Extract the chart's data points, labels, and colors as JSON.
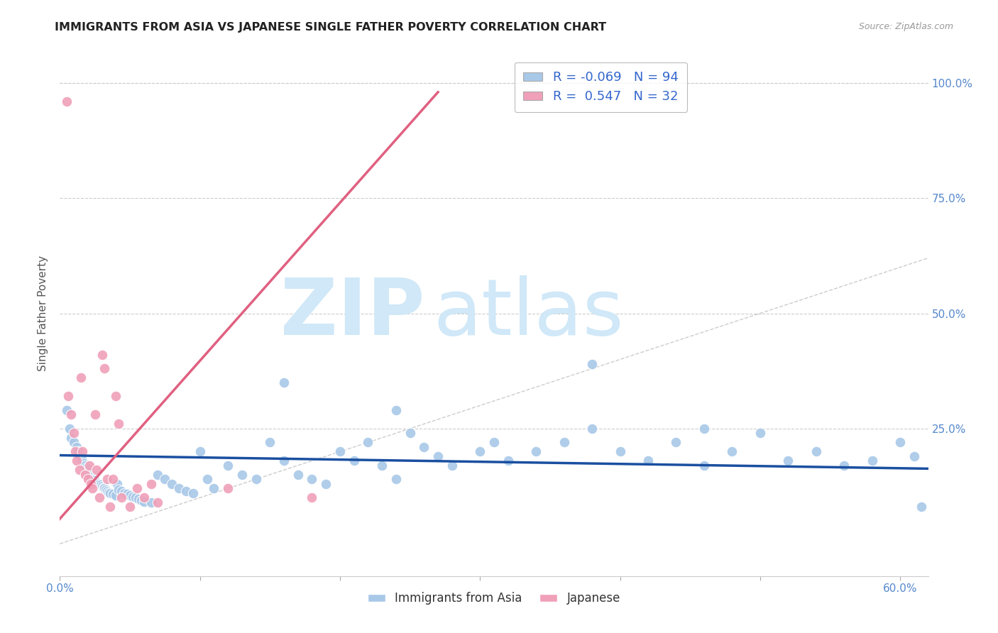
{
  "title": "IMMIGRANTS FROM ASIA VS JAPANESE SINGLE FATHER POVERTY CORRELATION CHART",
  "source": "Source: ZipAtlas.com",
  "ylabel": "Single Father Poverty",
  "legend_label1": "Immigrants from Asia",
  "legend_label2": "Japanese",
  "R1": "-0.069",
  "N1": "94",
  "R2": "0.547",
  "N2": "32",
  "xlim": [
    0.0,
    0.62
  ],
  "ylim": [
    -0.07,
    1.07
  ],
  "xticks": [
    0.0,
    0.1,
    0.2,
    0.3,
    0.4,
    0.5,
    0.6
  ],
  "yticks": [
    0.0,
    0.25,
    0.5,
    0.75,
    1.0
  ],
  "color_blue": "#a8c8e8",
  "color_pink": "#f0a0b8",
  "color_blue_line": "#1a4fa0",
  "color_pink_line": "#e06080",
  "blue_x": [
    0.005,
    0.007,
    0.008,
    0.01,
    0.012,
    0.013,
    0.014,
    0.015,
    0.016,
    0.017,
    0.018,
    0.019,
    0.02,
    0.02,
    0.021,
    0.022,
    0.023,
    0.024,
    0.025,
    0.025,
    0.026,
    0.027,
    0.028,
    0.029,
    0.03,
    0.031,
    0.032,
    0.033,
    0.034,
    0.035,
    0.036,
    0.038,
    0.04,
    0.041,
    0.042,
    0.044,
    0.046,
    0.048,
    0.05,
    0.052,
    0.054,
    0.056,
    0.058,
    0.06,
    0.065,
    0.07,
    0.075,
    0.08,
    0.085,
    0.09,
    0.095,
    0.1,
    0.105,
    0.11,
    0.12,
    0.13,
    0.14,
    0.15,
    0.16,
    0.17,
    0.18,
    0.19,
    0.2,
    0.21,
    0.22,
    0.23,
    0.24,
    0.25,
    0.26,
    0.27,
    0.28,
    0.3,
    0.31,
    0.32,
    0.34,
    0.36,
    0.38,
    0.4,
    0.42,
    0.44,
    0.46,
    0.48,
    0.5,
    0.52,
    0.54,
    0.56,
    0.58,
    0.6,
    0.61,
    0.615,
    0.16,
    0.24,
    0.38,
    0.46
  ],
  "blue_y": [
    0.29,
    0.25,
    0.23,
    0.22,
    0.21,
    0.2,
    0.19,
    0.185,
    0.18,
    0.175,
    0.17,
    0.165,
    0.16,
    0.155,
    0.15,
    0.148,
    0.145,
    0.142,
    0.14,
    0.138,
    0.135,
    0.132,
    0.13,
    0.128,
    0.125,
    0.122,
    0.12,
    0.118,
    0.115,
    0.112,
    0.11,
    0.108,
    0.105,
    0.13,
    0.118,
    0.115,
    0.11,
    0.108,
    0.105,
    0.102,
    0.1,
    0.098,
    0.095,
    0.092,
    0.09,
    0.15,
    0.14,
    0.13,
    0.12,
    0.115,
    0.11,
    0.2,
    0.14,
    0.12,
    0.17,
    0.15,
    0.14,
    0.22,
    0.18,
    0.15,
    0.14,
    0.13,
    0.2,
    0.18,
    0.22,
    0.17,
    0.14,
    0.24,
    0.21,
    0.19,
    0.17,
    0.2,
    0.22,
    0.18,
    0.2,
    0.22,
    0.25,
    0.2,
    0.18,
    0.22,
    0.17,
    0.2,
    0.24,
    0.18,
    0.2,
    0.17,
    0.18,
    0.22,
    0.19,
    0.08,
    0.35,
    0.29,
    0.39,
    0.25
  ],
  "pink_x": [
    0.005,
    0.006,
    0.008,
    0.01,
    0.011,
    0.012,
    0.014,
    0.015,
    0.016,
    0.018,
    0.02,
    0.021,
    0.022,
    0.023,
    0.025,
    0.026,
    0.028,
    0.03,
    0.032,
    0.034,
    0.036,
    0.038,
    0.04,
    0.042,
    0.044,
    0.05,
    0.055,
    0.06,
    0.065,
    0.07,
    0.12,
    0.18
  ],
  "pink_y": [
    0.96,
    0.32,
    0.28,
    0.24,
    0.2,
    0.18,
    0.16,
    0.36,
    0.2,
    0.15,
    0.14,
    0.17,
    0.13,
    0.12,
    0.28,
    0.16,
    0.1,
    0.41,
    0.38,
    0.14,
    0.08,
    0.14,
    0.32,
    0.26,
    0.1,
    0.08,
    0.12,
    0.1,
    0.13,
    0.09,
    0.12,
    0.1
  ],
  "blue_line_x": [
    0.0,
    0.62
  ],
  "blue_line_y": [
    0.192,
    0.163
  ],
  "pink_line_x": [
    -0.01,
    0.27
  ],
  "pink_line_y": [
    0.02,
    0.98
  ],
  "diag_line_x": [
    0.0,
    0.62
  ],
  "diag_line_y": [
    0.0,
    0.62
  ]
}
